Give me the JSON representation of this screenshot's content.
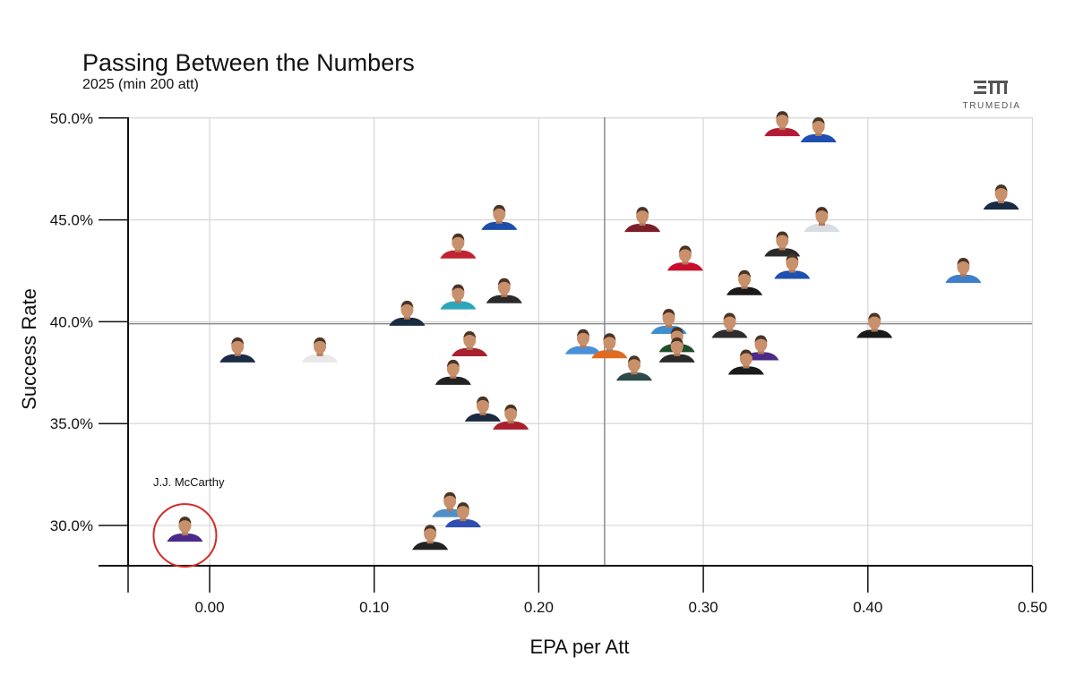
{
  "chart_data": {
    "type": "scatter",
    "title": "Passing Between the Numbers",
    "subtitle": "2025 (min 200 att)",
    "xlabel": "EPA per Att",
    "ylabel": "Success Rate",
    "xlim": [
      -0.05,
      0.5
    ],
    "ylim": [
      28.0,
      50.0
    ],
    "x_ticks": [
      0.0,
      0.1,
      0.2,
      0.3,
      0.4,
      0.5
    ],
    "x_tick_labels": [
      "0.00",
      "0.10",
      "0.20",
      "0.30",
      "0.40",
      "0.50"
    ],
    "y_ticks": [
      30,
      35,
      40,
      45,
      50
    ],
    "y_tick_labels": [
      "30.0%",
      "35.0%",
      "40.0%",
      "45.0%",
      "50.0%"
    ],
    "grid": true,
    "reference_lines": {
      "x": 0.24,
      "y": 39.9
    },
    "annotation": {
      "label": "J.J. McCarthy",
      "x": -0.015,
      "y": 29.6
    },
    "points": [
      {
        "x": 0.348,
        "y": 49.5,
        "color": "#b31b34"
      },
      {
        "x": 0.37,
        "y": 49.2,
        "color": "#1f4fb0"
      },
      {
        "x": 0.481,
        "y": 45.9,
        "color": "#1b2a44"
      },
      {
        "x": 0.176,
        "y": 44.9,
        "color": "#1e4fa8"
      },
      {
        "x": 0.263,
        "y": 44.8,
        "color": "#7a1e28"
      },
      {
        "x": 0.372,
        "y": 44.8,
        "color": "#d8dde2"
      },
      {
        "x": 0.151,
        "y": 43.5,
        "color": "#c0232f"
      },
      {
        "x": 0.348,
        "y": 43.6,
        "color": "#2a2a2a"
      },
      {
        "x": 0.289,
        "y": 42.9,
        "color": "#c8102e"
      },
      {
        "x": 0.354,
        "y": 42.5,
        "color": "#1f4fb0"
      },
      {
        "x": 0.325,
        "y": 41.7,
        "color": "#1a1a1a"
      },
      {
        "x": 0.458,
        "y": 42.3,
        "color": "#3d7fc8"
      },
      {
        "x": 0.151,
        "y": 41.0,
        "color": "#2aa7b8"
      },
      {
        "x": 0.179,
        "y": 41.3,
        "color": "#2a2a2a"
      },
      {
        "x": 0.279,
        "y": 39.8,
        "color": "#3f8fd0"
      },
      {
        "x": 0.12,
        "y": 40.2,
        "color": "#1a2a40"
      },
      {
        "x": 0.316,
        "y": 39.6,
        "color": "#2d2d2d"
      },
      {
        "x": 0.404,
        "y": 39.6,
        "color": "#1a1a1a"
      },
      {
        "x": 0.017,
        "y": 38.4,
        "color": "#1c2c44"
      },
      {
        "x": 0.067,
        "y": 38.4,
        "color": "#e8e8e8"
      },
      {
        "x": 0.158,
        "y": 38.7,
        "color": "#a8202e"
      },
      {
        "x": 0.227,
        "y": 38.8,
        "color": "#4a90d9"
      },
      {
        "x": 0.243,
        "y": 38.6,
        "color": "#e06a1f"
      },
      {
        "x": 0.284,
        "y": 38.9,
        "color": "#1e4d2b"
      },
      {
        "x": 0.284,
        "y": 38.4,
        "color": "#2a2a2a"
      },
      {
        "x": 0.335,
        "y": 38.5,
        "color": "#4b2a8a"
      },
      {
        "x": 0.326,
        "y": 37.8,
        "color": "#1a1a1a"
      },
      {
        "x": 0.148,
        "y": 37.3,
        "color": "#222222"
      },
      {
        "x": 0.258,
        "y": 37.5,
        "color": "#2e4a4a"
      },
      {
        "x": 0.166,
        "y": 35.5,
        "color": "#1a2a40"
      },
      {
        "x": 0.183,
        "y": 35.1,
        "color": "#a8202e"
      },
      {
        "x": 0.146,
        "y": 30.8,
        "color": "#4f8fc8"
      },
      {
        "x": 0.154,
        "y": 30.3,
        "color": "#2f4fb0"
      },
      {
        "x": 0.134,
        "y": 29.2,
        "color": "#222222"
      },
      {
        "x": -0.015,
        "y": 29.6,
        "color": "#4b2a8a",
        "highlight": true
      }
    ]
  },
  "logo": {
    "text": "TRUMEDIA"
  }
}
